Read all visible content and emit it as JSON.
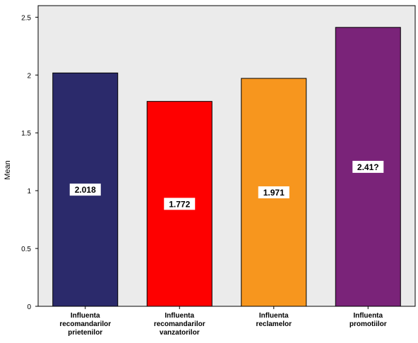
{
  "chart_data": {
    "type": "bar",
    "title": "",
    "xlabel": "",
    "ylabel": "Mean",
    "ylim": [
      0,
      2.6
    ],
    "yticks": [
      "0",
      "0.5",
      "1",
      "1.5",
      "2",
      "2.5"
    ],
    "ytick_values": [
      0,
      0.5,
      1,
      1.5,
      2,
      2.5
    ],
    "grid": false,
    "background": "#ebebeb",
    "categories": [
      [
        "Influenta",
        "recomandarilor",
        "prietenilor"
      ],
      [
        "Influenta",
        "recomandarilor",
        "vanzatorilor"
      ],
      [
        "Influenta",
        "reclamelor"
      ],
      [
        "Influenta",
        "promotiilor"
      ]
    ],
    "values": [
      2.018,
      1.772,
      1.971,
      2.412
    ],
    "data_labels": [
      "2.018",
      "1.772",
      "1.971",
      "2.41?"
    ],
    "colors": [
      "#2b2a6b",
      "#fe0000",
      "#f7961e",
      "#7a2379"
    ]
  }
}
